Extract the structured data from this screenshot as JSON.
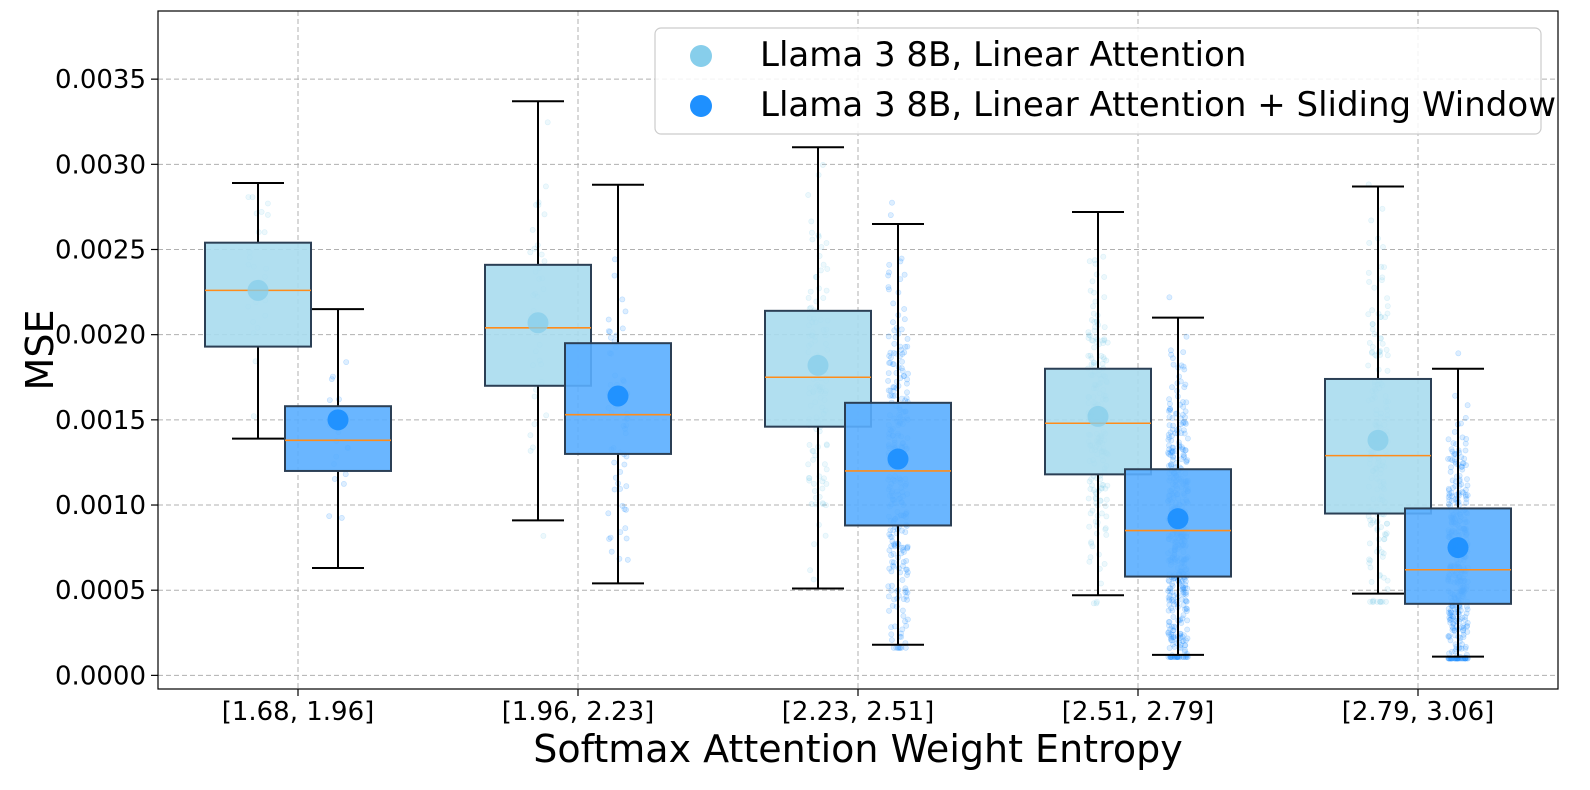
{
  "chart_data": {
    "type": "boxplot",
    "title": "",
    "xlabel": "Softmax Attention Weight Entropy",
    "ylabel": "MSE",
    "categories": [
      "[1.68, 1.96]",
      "[1.96, 2.23]",
      "[2.23, 2.51]",
      "[2.51, 2.79]",
      "[2.79, 3.06]"
    ],
    "ylim": [
      -8e-05,
      0.0039
    ],
    "yticks": [
      0.0,
      0.0005,
      0.001,
      0.0015,
      0.002,
      0.0025,
      0.003,
      0.0035
    ],
    "ytick_labels": [
      "0.0000",
      "0.0005",
      "0.0010",
      "0.0015",
      "0.0020",
      "0.0025",
      "0.0030",
      "0.0035"
    ],
    "grid": true,
    "legend_position": "top-right",
    "series": [
      {
        "name": "Llama 3 8B, Linear Attention",
        "box_color": "#a8dbee",
        "marker_color": "#87ceeb",
        "point_counts": [
          25,
          40,
          120,
          200,
          190
        ],
        "boxes": [
          {
            "whisker_low": 0.00139,
            "q1": 0.00193,
            "median": 0.00226,
            "q3": 0.00254,
            "whisker_high": 0.00289,
            "mean": 0.00226
          },
          {
            "whisker_low": 0.00091,
            "q1": 0.0017,
            "median": 0.00204,
            "q3": 0.00241,
            "whisker_high": 0.00337,
            "mean": 0.00207
          },
          {
            "whisker_low": 0.00051,
            "q1": 0.00146,
            "median": 0.00175,
            "q3": 0.00214,
            "whisker_high": 0.0031,
            "mean": 0.00182
          },
          {
            "whisker_low": 0.00047,
            "q1": 0.00118,
            "median": 0.00148,
            "q3": 0.0018,
            "whisker_high": 0.00272,
            "mean": 0.00152
          },
          {
            "whisker_low": 0.00048,
            "q1": 0.00095,
            "median": 0.00129,
            "q3": 0.00174,
            "whisker_high": 0.00287,
            "mean": 0.00138
          }
        ]
      },
      {
        "name": "Llama 3 8B, Linear Attention + Sliding Window",
        "box_color": "#5aaeff",
        "marker_color": "#1e90ff",
        "point_counts": [
          20,
          60,
          280,
          450,
          400
        ],
        "boxes": [
          {
            "whisker_low": 0.00063,
            "q1": 0.0012,
            "median": 0.00138,
            "q3": 0.00158,
            "whisker_high": 0.00215,
            "mean": 0.0015
          },
          {
            "whisker_low": 0.00054,
            "q1": 0.0013,
            "median": 0.00153,
            "q3": 0.00195,
            "whisker_high": 0.00288,
            "mean": 0.00164
          },
          {
            "whisker_low": 0.00018,
            "q1": 0.00088,
            "median": 0.0012,
            "q3": 0.0016,
            "whisker_high": 0.00265,
            "mean": 0.00127
          },
          {
            "whisker_low": 0.00012,
            "q1": 0.00058,
            "median": 0.00085,
            "q3": 0.00121,
            "whisker_high": 0.0021,
            "mean": 0.00092
          },
          {
            "whisker_low": 0.00011,
            "q1": 0.00042,
            "median": 0.00062,
            "q3": 0.00098,
            "whisker_high": 0.0018,
            "mean": 0.00075
          }
        ]
      }
    ],
    "colors": {
      "median_line": "#ff8c1a",
      "box_edge": "#2b3f55",
      "whisker": "#000000",
      "grid": "#b0b0b0"
    }
  }
}
